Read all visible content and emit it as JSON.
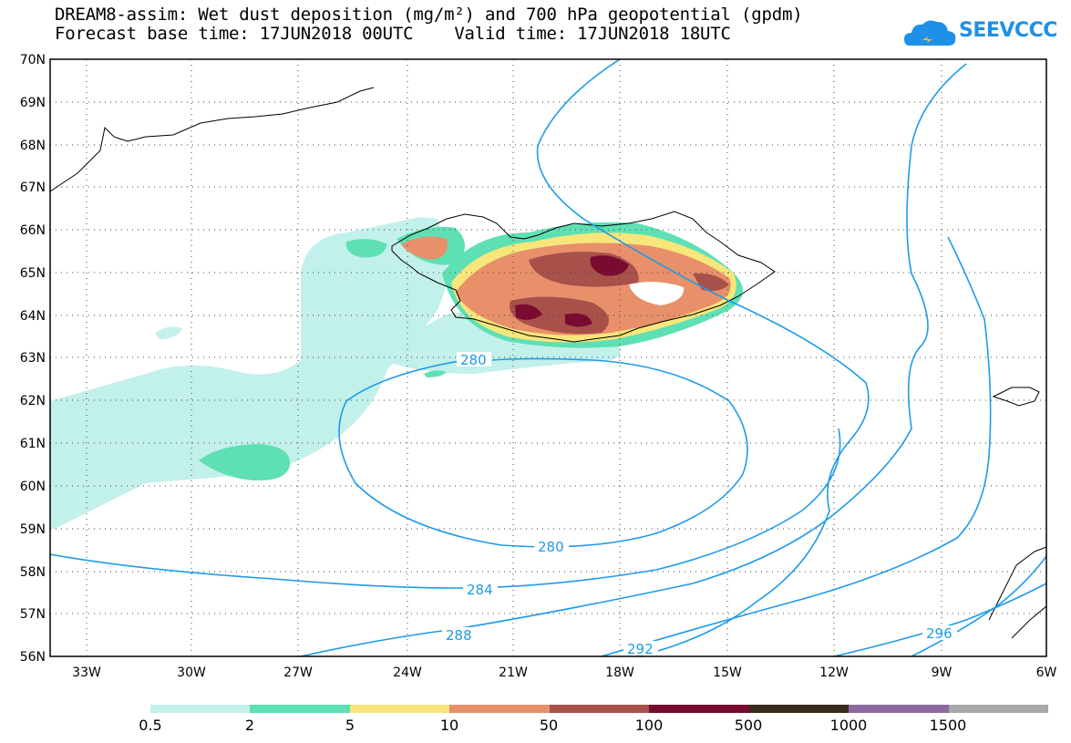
{
  "title": {
    "line1": "DREAM8-assim: Wet dust deposition (mg/m²) and 700 hPa geopotential (gpdm)",
    "line2": "Forecast base time: 17JUN2018 00UTC    Valid time: 17JUN2018 18UTC"
  },
  "logo": {
    "text": "SEEVCCC",
    "icon": "cloud-icon",
    "color": "#1e90e8"
  },
  "axes": {
    "lat_labels": [
      "70N",
      "69N",
      "68N",
      "67N",
      "66N",
      "65N",
      "64N",
      "63N",
      "62N",
      "61N",
      "60N",
      "59N",
      "58N",
      "57N",
      "56N"
    ],
    "lon_labels": [
      "33W",
      "30W",
      "27W",
      "24W",
      "21W",
      "18W",
      "15W",
      "12W",
      "9W",
      "6W"
    ],
    "lat_range": [
      56,
      70
    ],
    "lon_range": [
      -34.2,
      -6
    ]
  },
  "contours": {
    "color": "#1e9be8",
    "labels": [
      "280",
      "280",
      "284",
      "288",
      "292",
      "296"
    ]
  },
  "legend": {
    "colors": [
      "#c2f0ea",
      "#5ee0b4",
      "#f7e67a",
      "#e8906a",
      "#a8504a",
      "#7a0a30",
      "#3a2a1a",
      "#8a6aa0",
      "#a8a8a8"
    ],
    "labels": [
      "0.5",
      "2",
      "5",
      "10",
      "50",
      "100",
      "500",
      "1000",
      "1500"
    ]
  }
}
